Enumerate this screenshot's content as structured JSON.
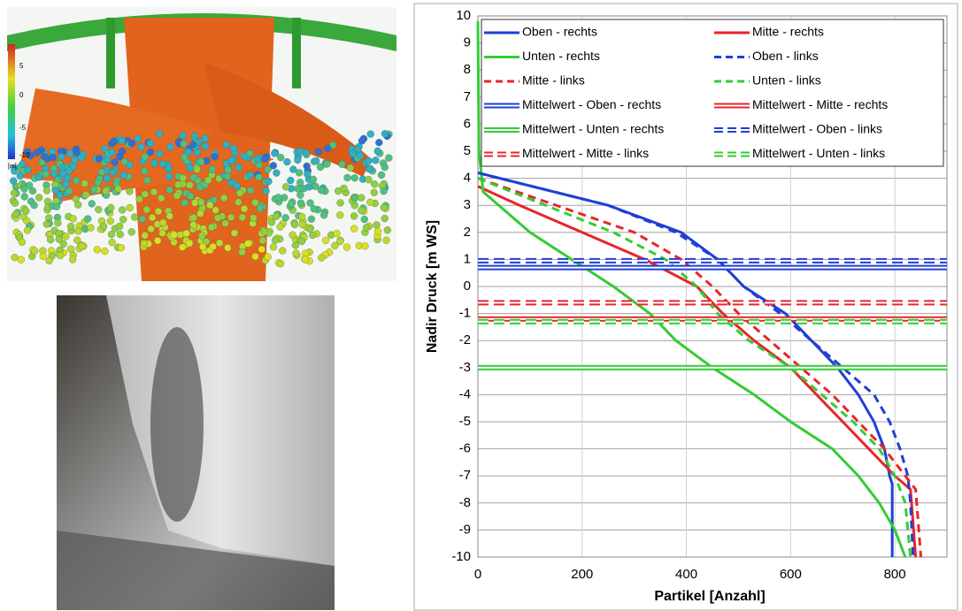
{
  "render": {
    "colorbar_labels": [
      "5",
      "0",
      "-5",
      "-10"
    ],
    "unit": "[m]"
  },
  "chart_data": {
    "type": "line",
    "xlabel": "Partikel [Anzahl]",
    "ylabel": "Nadir Druck [m WS]",
    "xlim": [
      0,
      900
    ],
    "xticks": [
      0,
      200,
      400,
      600,
      800
    ],
    "ylim": [
      -10,
      10
    ],
    "yticks": [
      -10,
      -9,
      -8,
      -7,
      -6,
      -5,
      -4,
      -3,
      -2,
      -1,
      0,
      1,
      2,
      3,
      4,
      5,
      6,
      7,
      8,
      9,
      10
    ],
    "grid": true,
    "legend": "top",
    "series": [
      {
        "name": "Oben - rechts",
        "color": "#1f3fd6",
        "style": "solid",
        "x": [
          0,
          250,
          390,
          460,
          510,
          590,
          640,
          690,
          730,
          760,
          780,
          790,
          795,
          795
        ],
        "values": [
          4.2,
          3,
          2,
          1,
          0,
          -1,
          -2,
          -3,
          -4,
          -5,
          -6,
          -7,
          -7.3,
          -10
        ]
      },
      {
        "name": "Mitte - rechts",
        "color": "#e8262a",
        "style": "solid",
        "x": [
          0,
          80,
          200,
          320,
          420,
          470,
          530,
          600,
          650,
          700,
          750,
          800,
          830,
          840
        ],
        "values": [
          3.7,
          3,
          2,
          1,
          0,
          -1,
          -2,
          -3,
          -4,
          -5,
          -6,
          -7,
          -7.5,
          -10
        ]
      },
      {
        "name": "Unten - rechts",
        "color": "#33cc33",
        "style": "solid",
        "x": [
          0,
          2,
          10,
          40,
          100,
          180,
          260,
          330,
          380,
          450,
          530,
          600,
          680,
          730,
          770,
          800,
          820
        ],
        "values": [
          9.8,
          5,
          3.5,
          3,
          2,
          1,
          0,
          -1,
          -2,
          -3,
          -4,
          -5,
          -6,
          -7,
          -8,
          -9,
          -10
        ]
      },
      {
        "name": "Oben - links",
        "color": "#1f3fd6",
        "style": "dashed",
        "x": [
          0,
          250,
          380,
          460,
          510,
          580,
          640,
          700,
          760,
          790,
          810,
          825,
          830,
          835
        ],
        "values": [
          4.2,
          3,
          2,
          1,
          0,
          -1,
          -2,
          -3,
          -4,
          -5,
          -6,
          -7,
          -8,
          -10
        ]
      },
      {
        "name": "Mitte - links",
        "color": "#e8262a",
        "style": "dashed",
        "x": [
          0,
          150,
          300,
          390,
          450,
          500,
          560,
          620,
          680,
          730,
          780,
          820,
          840,
          850
        ],
        "values": [
          4,
          3,
          2,
          1,
          0,
          -1,
          -2,
          -3,
          -4,
          -5,
          -6,
          -7,
          -7.5,
          -10
        ]
      },
      {
        "name": "Unten - links",
        "color": "#33cc33",
        "style": "dashed",
        "x": [
          0,
          130,
          260,
          360,
          420,
          460,
          520,
          600,
          660,
          720,
          770,
          800,
          820,
          830
        ],
        "values": [
          4,
          3,
          2,
          1,
          0,
          -1,
          -2,
          -3,
          -4,
          -5,
          -6,
          -7,
          -8,
          -10
        ]
      },
      {
        "name": "Mittelwert - Oben - rechts",
        "color": "#1f3fd6",
        "style": "double",
        "x": [
          0,
          900
        ],
        "values": [
          0.7,
          0.7
        ]
      },
      {
        "name": "Mittelwert - Mitte - rechts",
        "color": "#e8262a",
        "style": "double",
        "x": [
          0,
          900
        ],
        "values": [
          -1.2,
          -1.2
        ]
      },
      {
        "name": "Mittelwert - Unten - rechts",
        "color": "#33cc33",
        "style": "double",
        "x": [
          0,
          900
        ],
        "values": [
          -3,
          -3
        ]
      },
      {
        "name": "Mittelwert - Oben - links",
        "color": "#1f3fd6",
        "style": "double-dashed",
        "x": [
          0,
          900
        ],
        "values": [
          0.95,
          0.95
        ]
      },
      {
        "name": "Mittelwert - Mitte - links",
        "color": "#e8262a",
        "style": "double-dashed",
        "x": [
          0,
          900
        ],
        "values": [
          -0.6,
          -0.6
        ]
      },
      {
        "name": "Mittelwert - Unten - links",
        "color": "#33cc33",
        "style": "double-dashed",
        "x": [
          0,
          900
        ],
        "values": [
          -1.3,
          -1.3
        ]
      }
    ]
  }
}
